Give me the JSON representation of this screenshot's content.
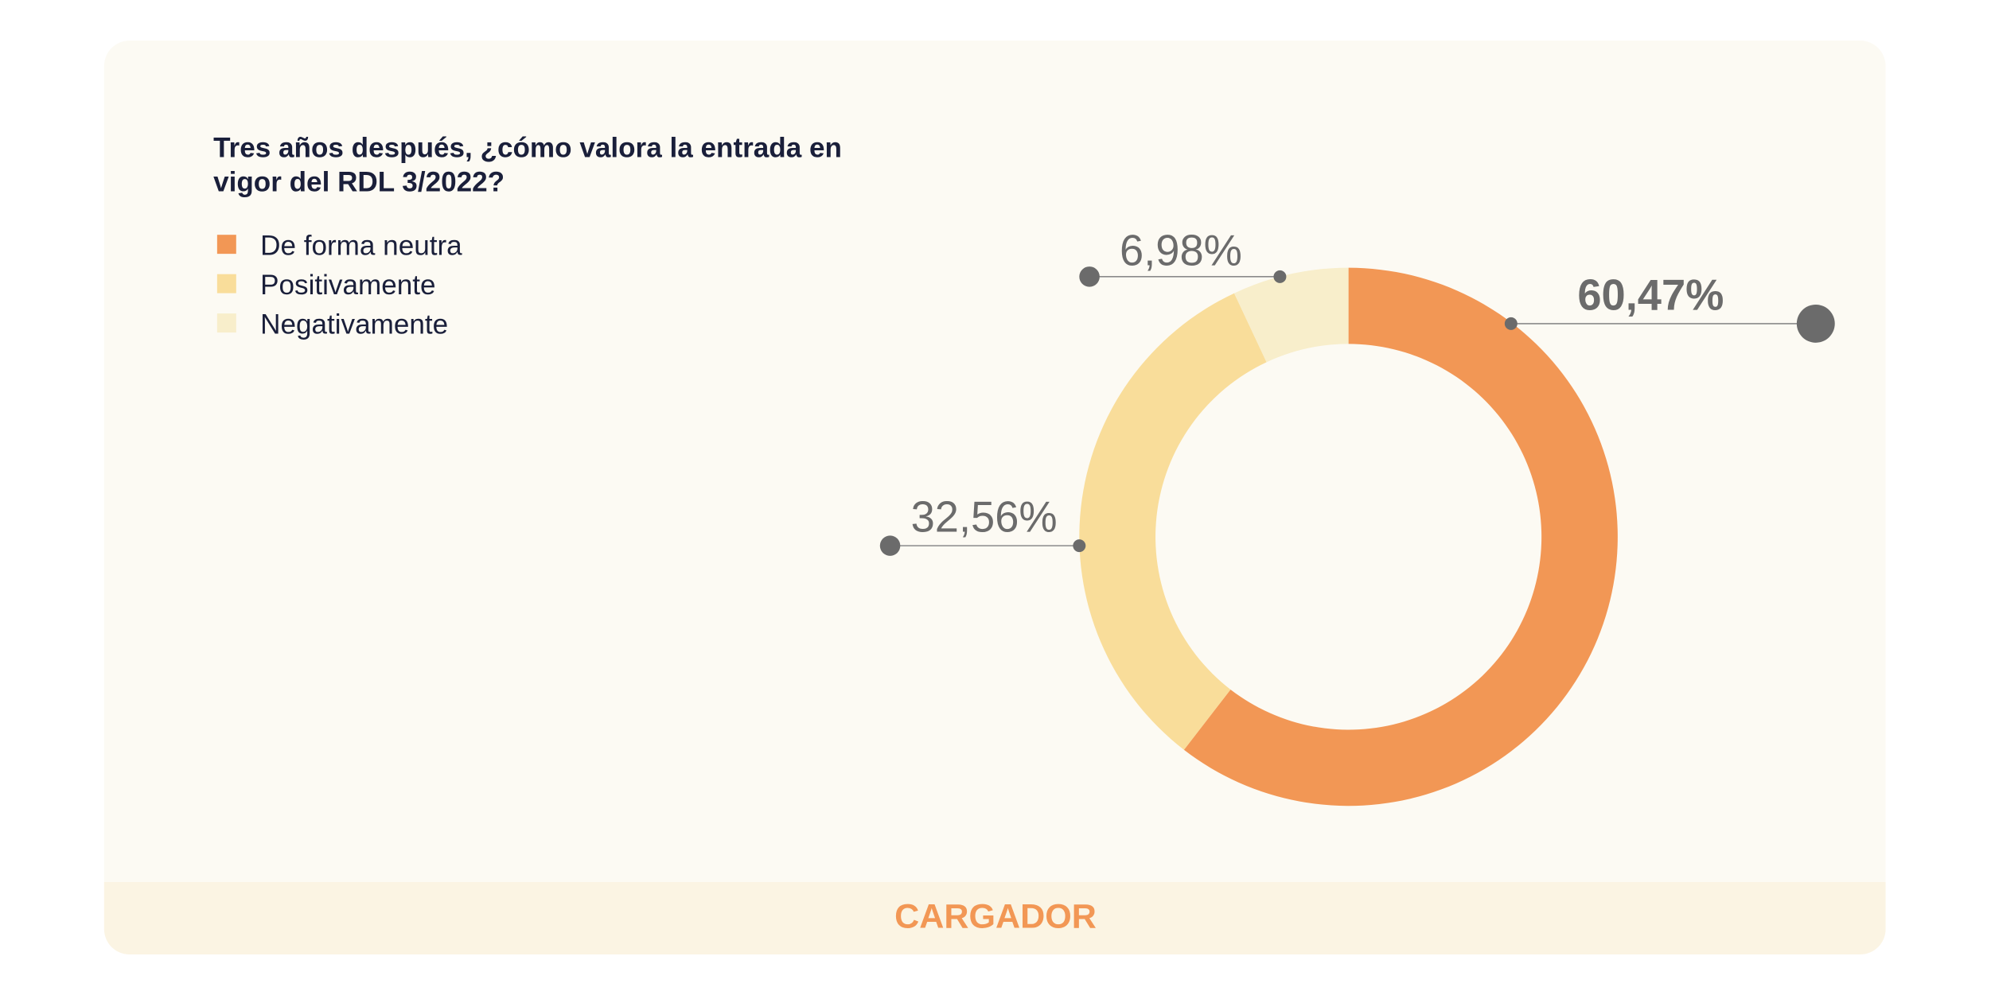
{
  "chart_data": {
    "type": "pie",
    "title": "Tres años después, ¿cómo valora la entrada en vigor del RDL 3/2022?",
    "categories": [
      "De forma neutra",
      "Positivamente",
      "Negativamente"
    ],
    "values": [
      60.47,
      32.56,
      6.98
    ],
    "value_labels": [
      "60,47%",
      "32,56%",
      "6,98%"
    ],
    "colors": [
      "#f29755",
      "#f9dd9a",
      "#f8eecb"
    ],
    "footer": "CARGADOR"
  }
}
